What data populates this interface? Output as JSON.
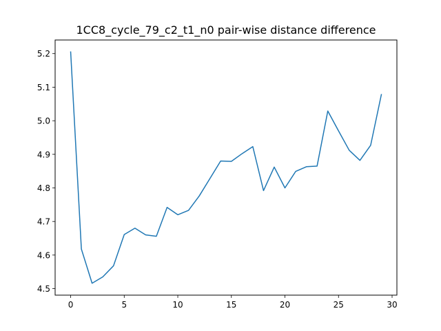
{
  "chart_data": {
    "type": "line",
    "title": "1CC8_cycle_79_c2_t1_n0 pair-wise distance difference",
    "xlabel": "",
    "ylabel": "",
    "x": [
      0,
      1,
      2,
      3,
      4,
      5,
      6,
      7,
      8,
      9,
      10,
      11,
      12,
      13,
      14,
      15,
      16,
      17,
      18,
      19,
      20,
      21,
      22,
      23,
      24,
      25,
      26,
      27,
      28,
      29
    ],
    "series": [
      {
        "values": [
          5.205,
          4.618,
          4.516,
          4.535,
          4.568,
          4.661,
          4.68,
          4.66,
          4.656,
          4.742,
          4.72,
          4.733,
          4.776,
          4.828,
          4.88,
          4.879,
          4.902,
          4.923,
          4.792,
          4.862,
          4.8,
          4.849,
          4.863,
          4.865,
          5.029,
          4.97,
          4.912,
          4.882,
          4.927,
          5.078
        ],
        "color": "#1f77b4"
      }
    ],
    "xlim": [
      -1.45,
      30.45
    ],
    "ylim": [
      4.4806,
      5.2405
    ],
    "xticks": [
      0,
      5,
      10,
      15,
      20,
      25,
      30
    ],
    "xtick_labels": [
      "0",
      "5",
      "10",
      "15",
      "20",
      "25",
      "30"
    ],
    "yticks": [
      4.5,
      4.6,
      4.7,
      4.8,
      4.9,
      5.0,
      5.1,
      5.2
    ],
    "ytick_labels": [
      "4.5",
      "4.6",
      "4.7",
      "4.8",
      "4.9",
      "5.0",
      "5.1",
      "5.2"
    ],
    "grid": false,
    "legend": "none"
  }
}
